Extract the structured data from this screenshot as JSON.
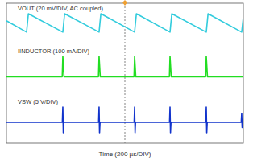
{
  "chart_data": {
    "type": "line",
    "x_label": "Time (200 µs/DIV)",
    "xlim": [
      0,
      2000
    ],
    "ylim": [
      -4,
      4
    ],
    "xticks": [
      1000
    ],
    "grid": true,
    "tick_labels": false,
    "series": [
      {
        "name": "VOUT (20 mV/DIV, AC coupled)",
        "color": "#33ccdd",
        "x": [
          0,
          170,
          185,
          476,
          491,
          782,
          797,
          1082,
          1097,
          1381,
          1396,
          1687,
          1702,
          1986,
          2000
        ],
        "values": [
          3.0,
          2.35,
          3.4,
          2.35,
          3.4,
          2.35,
          3.4,
          2.35,
          3.4,
          2.35,
          3.4,
          2.35,
          3.4,
          2.35,
          3.2
        ]
      },
      {
        "name": "IINDUCTOR (100 mA/DIV)",
        "color": "#22dd22",
        "x": [
          0,
          471,
          476,
          486,
          777,
          782,
          792,
          1077,
          1082,
          1092,
          1376,
          1381,
          1391,
          1682,
          1687,
          1697,
          2000
        ],
        "values": [
          -0.2,
          -0.2,
          0.97,
          -0.2,
          -0.2,
          0.97,
          -0.2,
          -0.2,
          0.97,
          -0.2,
          -0.2,
          0.97,
          -0.2,
          -0.2,
          0.97,
          -0.2,
          -0.2
        ]
      },
      {
        "name": "VSW (5 V/DIV)",
        "color": "#1133cc",
        "x": [
          0,
          472,
          476,
          480,
          484,
          778,
          782,
          786,
          790,
          1078,
          1082,
          1086,
          1090,
          1377,
          1381,
          1385,
          1389,
          1683,
          1687,
          1691,
          1695,
          1982,
          1986,
          1990,
          1994,
          2000
        ],
        "values": [
          -2.8,
          -2.8,
          -1.93,
          -3.4,
          -2.8,
          -2.8,
          -1.93,
          -3.4,
          -2.8,
          -2.8,
          -1.93,
          -3.4,
          -2.8,
          -2.8,
          -1.93,
          -3.4,
          -2.8,
          -2.8,
          -1.93,
          -3.4,
          -2.8,
          -2.8,
          -2.3,
          -3.1,
          -2.8,
          -2.8
        ]
      }
    ]
  }
}
